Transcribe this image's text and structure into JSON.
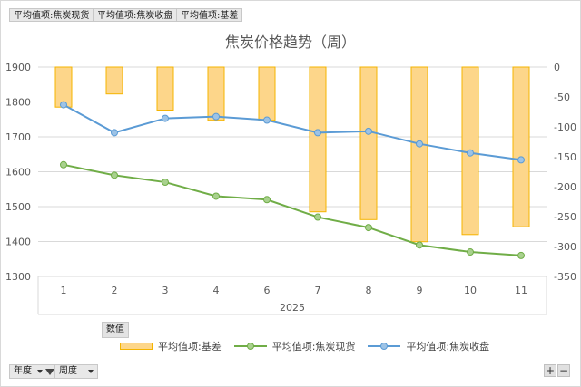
{
  "field_buttons": {
    "top": [
      "平均值项:焦炭现货",
      "平均值项:焦炭收盘",
      "平均值项:基差"
    ],
    "legend_title": "数值",
    "filters": [
      "年度",
      "周度"
    ],
    "expand": "+",
    "collapse": "−"
  },
  "chart_data": {
    "type": "bar+line",
    "title": "焦炭价格趋势（周）",
    "categories": [
      "1",
      "2",
      "3",
      "4",
      "6",
      "7",
      "8",
      "9",
      "10",
      "11"
    ],
    "group_label": "2025",
    "y_left": {
      "min": 1300,
      "max": 1900,
      "ticks": [
        1300,
        1400,
        1500,
        1600,
        1700,
        1800,
        1900
      ]
    },
    "y_right": {
      "min": -350,
      "max": 0,
      "ticks": [
        0,
        -50,
        -100,
        -150,
        -200,
        -250,
        -300,
        -350
      ]
    },
    "series": [
      {
        "name": "平均值项:基差",
        "type": "bar",
        "axis": "right",
        "color": "#fdd68a",
        "edge": "#f5b400",
        "values": [
          -67,
          -45,
          -72,
          -89,
          -89,
          -242,
          -255,
          -292,
          -280,
          -267
        ]
      },
      {
        "name": "平均值项:焦炭现货",
        "type": "line",
        "axis": "left",
        "color": "#70ad47",
        "marker": "#a9d18e",
        "values": [
          1620,
          1590,
          1570,
          1530,
          1520,
          1470,
          1440,
          1390,
          1370,
          1360
        ]
      },
      {
        "name": "平均值项:焦炭收盘",
        "type": "line",
        "axis": "left",
        "color": "#5b9bd5",
        "marker": "#9dc3e6",
        "values": [
          1792,
          1712,
          1753,
          1758,
          1748,
          1712,
          1716,
          1680,
          1654,
          1634
        ]
      }
    ],
    "grid": true,
    "legend_position": "bottom"
  }
}
